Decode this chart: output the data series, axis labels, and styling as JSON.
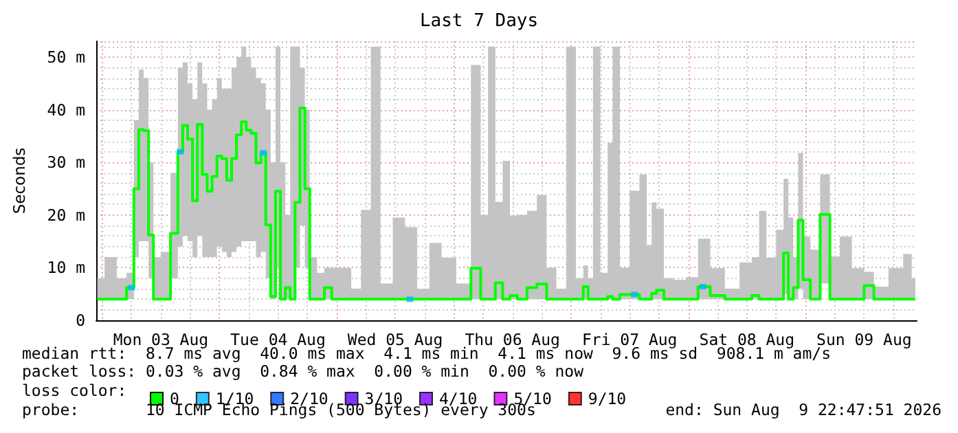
{
  "chart_data": {
    "type": "step",
    "title": "Last 7 Days",
    "ylabel": "Seconds",
    "xlim": [
      "2026-08-02T22:47",
      "2026-08-09T22:47"
    ],
    "xticks": [
      {
        "value": "2026-08-03T12:00",
        "label": "Mon 03 Aug"
      },
      {
        "value": "2026-08-04T12:00",
        "label": "Tue 04 Aug"
      },
      {
        "value": "2026-08-05T12:00",
        "label": "Wed 05 Aug"
      },
      {
        "value": "2026-08-06T12:00",
        "label": "Thu 06 Aug"
      },
      {
        "value": "2026-08-07T12:00",
        "label": "Fri 07 Aug"
      },
      {
        "value": "2026-08-08T12:00",
        "label": "Sat 08 Aug"
      },
      {
        "value": "2026-08-09T12:00",
        "label": "Sun 09 Aug"
      }
    ],
    "ylim": [
      0,
      53
    ],
    "yticks": [
      0,
      {
        "value": 10,
        "label": "10 m"
      },
      {
        "value": 20,
        "label": "20 m"
      },
      {
        "value": 30,
        "label": "30 m"
      },
      {
        "value": 40,
        "label": "40 m"
      },
      {
        "value": 50,
        "label": "50 m"
      }
    ],
    "grid": true,
    "legend": "bottom",
    "legend_title": "loss color:",
    "series": [
      {
        "name": "0",
        "color": "#00ff00",
        "x": [
          "2026-08-02T23:00",
          "2026-08-03T02:00",
          "2026-08-03T04:00",
          "2026-08-03T06:00",
          "2026-08-03T07:00",
          "2026-08-03T08:00",
          "2026-08-03T09:00",
          "2026-08-03T10:00",
          "2026-08-03T11:00",
          "2026-08-03T13:00",
          "2026-08-03T15:00",
          "2026-08-03T16:00",
          "2026-08-03T17:00",
          "2026-08-03T18:00",
          "2026-08-03T19:00",
          "2026-08-03T20:00",
          "2026-08-03T21:00",
          "2026-08-03T22:00",
          "2026-08-03T23:00",
          "2026-08-04T00:00",
          "2026-08-04T01:00",
          "2026-08-04T02:00",
          "2026-08-04T03:00",
          "2026-08-04T04:00",
          "2026-08-04T05:00",
          "2026-08-04T06:00",
          "2026-08-04T07:00",
          "2026-08-04T08:00",
          "2026-08-04T09:00",
          "2026-08-04T10:00",
          "2026-08-04T11:00",
          "2026-08-04T12:00",
          "2026-08-04T13:00",
          "2026-08-04T14:00",
          "2026-08-04T15:00",
          "2026-08-04T16:00",
          "2026-08-04T17:00",
          "2026-08-04T18:00",
          "2026-08-04T19:00",
          "2026-08-04T21:00",
          "2026-08-04T22:00",
          "2026-08-05T00:00",
          "2026-08-05T02:00",
          "2026-08-05T04:00",
          "2026-08-05T06:00",
          "2026-08-05T08:00",
          "2026-08-05T10:00",
          "2026-08-05T13:00",
          "2026-08-05T15:00",
          "2026-08-05T18:00",
          "2026-08-05T20:00",
          "2026-08-05T23:00",
          "2026-08-06T02:00",
          "2026-08-06T05:00",
          "2026-08-06T06:00",
          "2026-08-06T08:00",
          "2026-08-06T09:00",
          "2026-08-06T11:00",
          "2026-08-06T12:00",
          "2026-08-06T14:00",
          "2026-08-06T16:00",
          "2026-08-06T18:00",
          "2026-08-06T20:00",
          "2026-08-06T22:00",
          "2026-08-07T00:00",
          "2026-08-07T02:00",
          "2026-08-07T03:00",
          "2026-08-07T04:00",
          "2026-08-07T05:00",
          "2026-08-07T07:00",
          "2026-08-07T08:00",
          "2026-08-07T09:00",
          "2026-08-07T11:00",
          "2026-08-07T13:00",
          "2026-08-07T15:00",
          "2026-08-07T16:00",
          "2026-08-07T17:00",
          "2026-08-07T18:00",
          "2026-08-07T20:00",
          "2026-08-07T22:00",
          "2026-08-08T01:00",
          "2026-08-08T03:00",
          "2026-08-08T06:00",
          "2026-08-08T09:00",
          "2026-08-08T12:00",
          "2026-08-08T14:00",
          "2026-08-08T15:00",
          "2026-08-08T17:00",
          "2026-08-08T19:00",
          "2026-08-08T20:00",
          "2026-08-08T21:00",
          "2026-08-08T22:00",
          "2026-08-08T23:00",
          "2026-08-09T00:00",
          "2026-08-09T02:00",
          "2026-08-09T04:00",
          "2026-08-09T06:00",
          "2026-08-09T08:00",
          "2026-08-09T11:00",
          "2026-08-09T13:00",
          "2026-08-09T15:00",
          "2026-08-09T19:00",
          "2026-08-09T21:00",
          "2026-08-09T22:30"
        ],
        "values": [
          4,
          4,
          4,
          6.2,
          25,
          36.2,
          36,
          16.2,
          4,
          4,
          16.5,
          32,
          37,
          34.4,
          22.7,
          37.2,
          27.7,
          24.5,
          27.3,
          31.2,
          30.7,
          26.6,
          30.7,
          35.2,
          37.7,
          36.1,
          35.5,
          29.9,
          31.8,
          18.1,
          4.5,
          24.5,
          4,
          6.2,
          4,
          22.4,
          40.3,
          25,
          4,
          4,
          6.2,
          4,
          4,
          4,
          4,
          4,
          4,
          4,
          4,
          4,
          4,
          4,
          4,
          9.9,
          4,
          4,
          7.1,
          4,
          4.7,
          4,
          6.2,
          6.9,
          4,
          4,
          4,
          4,
          6.4,
          4,
          4,
          4,
          4.5,
          4,
          4.9,
          4.9,
          4,
          4,
          5.1,
          5.7,
          4,
          4,
          4,
          6.4,
          4.7,
          4,
          4,
          4.7,
          4,
          4,
          4,
          12.8,
          4,
          6.2,
          19,
          7.7,
          4,
          20.1,
          4,
          4,
          4,
          6.6,
          4,
          4,
          4,
          4
        ],
        "lower": [
          3.9,
          3.9,
          3.9,
          4,
          12,
          15,
          15,
          8,
          3.9,
          3.9,
          8,
          14,
          16,
          15,
          12,
          16,
          12,
          12,
          12,
          14,
          13,
          12,
          13,
          14,
          15,
          15,
          15,
          12,
          13,
          8,
          4,
          10,
          3.9,
          4,
          3.9,
          10,
          18,
          10,
          3.9,
          3.9,
          4,
          3.9,
          3.9,
          3.9,
          3.9,
          3.9,
          3.9,
          3.9,
          3.9,
          3.9,
          3.9,
          3.9,
          3.9,
          4,
          3.9,
          3.9,
          4,
          3.9,
          4,
          3.9,
          4,
          4,
          3.9,
          3.9,
          3.9,
          3.9,
          4,
          3.9,
          3.9,
          3.9,
          4,
          3.9,
          4,
          4,
          3.9,
          3.9,
          4,
          4,
          3.9,
          3.9,
          3.9,
          4,
          4,
          3.9,
          3.9,
          4,
          3.9,
          3.9,
          3.9,
          5,
          3.9,
          4,
          6,
          4,
          3.9,
          7,
          3.9,
          3.9,
          3.9,
          4,
          3.9,
          3.9,
          3.9,
          3.9
        ],
        "upper": [
          8,
          12,
          8,
          9,
          38,
          47.6,
          46,
          30,
          12,
          13,
          28,
          48,
          49,
          45,
          42,
          49,
          45,
          40,
          42,
          46,
          44,
          44,
          48,
          50,
          52,
          50,
          48,
          46,
          45,
          40,
          30,
          52,
          30,
          20,
          52,
          52,
          48,
          40,
          12,
          9,
          10,
          10,
          10,
          6,
          21,
          52,
          7,
          19.5,
          17.7,
          6,
          14.7,
          11.9,
          7,
          48.5,
          20,
          52,
          22.5,
          30.3,
          19.9,
          20,
          20.8,
          23.8,
          10,
          6,
          52,
          8,
          10.4,
          8,
          52,
          9,
          33.7,
          52,
          10,
          24.6,
          27.7,
          14.3,
          22.4,
          21.2,
          8,
          7.7,
          8.2,
          15.5,
          9.9,
          6,
          11,
          12,
          20.8,
          11.9,
          17.2,
          26.9,
          19.5,
          12,
          31.8,
          15.9,
          13.4,
          27.7,
          12.1,
          15.9,
          9.9,
          9.2,
          6.4,
          9.9,
          12.6,
          8
        ]
      },
      {
        "name": "1/10",
        "type": "scatter",
        "marker": "square",
        "color": "#00b8ff",
        "x": [
          "2026-08-03T06:00",
          "2026-08-03T16:00",
          "2026-08-04T09:00",
          "2026-08-05T15:00",
          "2026-08-07T13:00",
          "2026-08-08T03:00"
        ],
        "values": [
          6.2,
          32,
          31.8,
          4,
          4.9,
          6.4
        ]
      },
      {
        "name": "2/10",
        "type": "scatter",
        "color": "#0059ff"
      },
      {
        "name": "3/10",
        "type": "scatter",
        "color": "#5e00ff"
      },
      {
        "name": "4/10",
        "type": "scatter",
        "color": "#7e00ff"
      },
      {
        "name": "5/10",
        "type": "scatter",
        "color": "#dd00ff"
      },
      {
        "name": "9/10",
        "type": "scatter",
        "color": "#ff0000"
      }
    ],
    "annotations": [
      "median rtt:  8.7 ms avg  40.0 ms max  4.1 ms min  4.1 ms now  9.6 ms sd  908.1 m am/s",
      "packet loss: 0.03 % avg  0.84 % max  0.00 % min  0.00 % now",
      "probe:       10 ICMP Echo Pings (500 Bytes) every 300s",
      "end: Sun Aug  9 22:47:51 2026"
    ]
  }
}
